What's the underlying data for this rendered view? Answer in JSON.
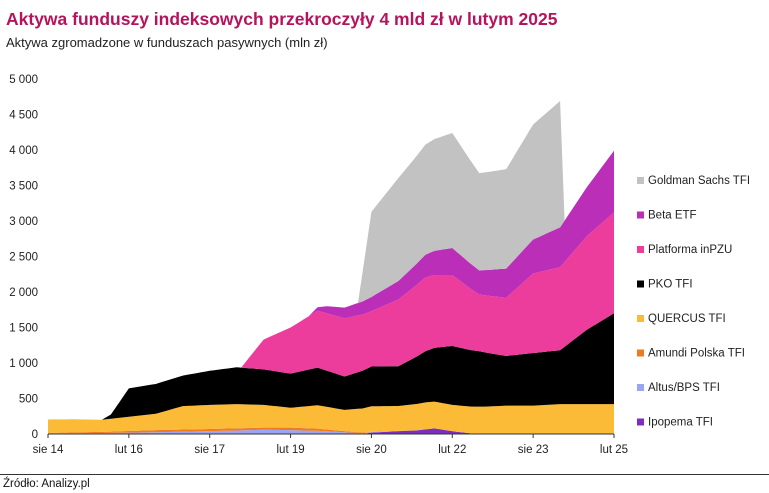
{
  "header": {
    "title": "Aktywa funduszy indeksowych przekroczyły 4 mld zł w lutym 2025",
    "subtitle": "Aktywa zgromadzone w funduszach pasywnych (mln zł)"
  },
  "footer": {
    "source": "Źródło: Analizy.pl"
  },
  "chart_data": {
    "type": "area",
    "stacked": true,
    "title": "Aktywa funduszy indeksowych przekroczyły 4 mld zł w lutym 2025",
    "subtitle": "Aktywa zgromadzone w funduszach pasywnych (mln zł)",
    "ylim": [
      0,
      5000
    ],
    "yticks": [
      0,
      500,
      1000,
      1500,
      2000,
      2500,
      3000,
      3500,
      4000,
      4500,
      5000
    ],
    "ytick_labels": [
      "0",
      "500",
      "1 000",
      "1 500",
      "2 000",
      "2 500",
      "3 000",
      "3 500",
      "4 000",
      "4 500",
      "5 000"
    ],
    "x_range": [
      "2014-08",
      "2025-02"
    ],
    "xtick_labels": [
      {
        "label": "sie 14",
        "date": "2014-08"
      },
      {
        "label": "lut 16",
        "date": "2016-02"
      },
      {
        "label": "sie 17",
        "date": "2017-08"
      },
      {
        "label": "lut 19",
        "date": "2019-02"
      },
      {
        "label": "sie 20",
        "date": "2020-08"
      },
      {
        "label": "lut 22",
        "date": "2022-02"
      },
      {
        "label": "sie 23",
        "date": "2023-08"
      },
      {
        "label": "lut 25",
        "date": "2025-02"
      }
    ],
    "grid": false,
    "legend_position": "right",
    "series": [
      {
        "name": "Ipopema TFI",
        "color": "#7b2fbe",
        "points": [
          [
            "2014-08",
            0
          ],
          [
            "2016-02",
            0
          ],
          [
            "2017-08",
            0
          ],
          [
            "2019-02",
            0
          ],
          [
            "2020-06",
            0
          ],
          [
            "2020-08",
            20
          ],
          [
            "2021-02",
            40
          ],
          [
            "2021-06",
            50
          ],
          [
            "2021-10",
            80
          ],
          [
            "2022-02",
            40
          ],
          [
            "2022-06",
            10
          ],
          [
            "2022-10",
            0
          ],
          [
            "2025-02",
            0
          ]
        ]
      },
      {
        "name": "Altus/BPS TFI",
        "color": "#9aa6f5",
        "points": [
          [
            "2014-08",
            10
          ],
          [
            "2015-08",
            15
          ],
          [
            "2016-08",
            25
          ],
          [
            "2017-08",
            40
          ],
          [
            "2018-08",
            60
          ],
          [
            "2019-02",
            55
          ],
          [
            "2019-08",
            45
          ],
          [
            "2020-08",
            5
          ],
          [
            "2021-08",
            0
          ],
          [
            "2025-02",
            0
          ]
        ]
      },
      {
        "name": "Amundi Polska TFI",
        "color": "#f07a22",
        "points": [
          [
            "2014-08",
            5
          ],
          [
            "2015-08",
            15
          ],
          [
            "2016-08",
            30
          ],
          [
            "2017-08",
            30
          ],
          [
            "2018-08",
            30
          ],
          [
            "2019-02",
            35
          ],
          [
            "2019-08",
            30
          ],
          [
            "2020-02",
            15
          ],
          [
            "2020-08",
            5
          ],
          [
            "2021-08",
            0
          ],
          [
            "2025-02",
            0
          ]
        ]
      },
      {
        "name": "QUERCUS TFI",
        "color": "#fbbb37",
        "points": [
          [
            "2014-08",
            190
          ],
          [
            "2015-02",
            185
          ],
          [
            "2015-08",
            170
          ],
          [
            "2016-02",
            200
          ],
          [
            "2016-08",
            230
          ],
          [
            "2017-02",
            330
          ],
          [
            "2017-08",
            340
          ],
          [
            "2018-02",
            340
          ],
          [
            "2018-08",
            320
          ],
          [
            "2019-02",
            280
          ],
          [
            "2019-08",
            330
          ],
          [
            "2020-02",
            300
          ],
          [
            "2020-08",
            360
          ],
          [
            "2021-02",
            350
          ],
          [
            "2021-08",
            380
          ],
          [
            "2022-02",
            370
          ],
          [
            "2022-08",
            380
          ],
          [
            "2023-02",
            400
          ],
          [
            "2023-08",
            400
          ],
          [
            "2024-02",
            420
          ],
          [
            "2024-08",
            420
          ],
          [
            "2025-02",
            420
          ]
        ]
      },
      {
        "name": "PKO TFI",
        "color": "#000000",
        "points": [
          [
            "2014-08",
            0
          ],
          [
            "2015-08",
            0
          ],
          [
            "2015-10",
            60
          ],
          [
            "2016-02",
            400
          ],
          [
            "2016-08",
            420
          ],
          [
            "2017-02",
            430
          ],
          [
            "2017-08",
            480
          ],
          [
            "2018-02",
            520
          ],
          [
            "2018-08",
            500
          ],
          [
            "2019-02",
            480
          ],
          [
            "2019-08",
            530
          ],
          [
            "2020-02",
            470
          ],
          [
            "2020-08",
            560
          ],
          [
            "2021-02",
            560
          ],
          [
            "2021-08",
            720
          ],
          [
            "2022-02",
            830
          ],
          [
            "2022-08",
            780
          ],
          [
            "2023-02",
            700
          ],
          [
            "2023-08",
            740
          ],
          [
            "2024-02",
            760
          ],
          [
            "2024-08",
            1050
          ],
          [
            "2025-02",
            1280
          ]
        ]
      },
      {
        "name": "Platforma inPZU",
        "color": "#ec3d9d",
        "points": [
          [
            "2014-08",
            0
          ],
          [
            "2018-03",
            0
          ],
          [
            "2018-08",
            420
          ],
          [
            "2019-02",
            650
          ],
          [
            "2019-08",
            800
          ],
          [
            "2020-02",
            820
          ],
          [
            "2020-08",
            780
          ],
          [
            "2021-02",
            940
          ],
          [
            "2021-08",
            1040
          ],
          [
            "2022-02",
            1000
          ],
          [
            "2022-08",
            800
          ],
          [
            "2023-02",
            820
          ],
          [
            "2023-08",
            1120
          ],
          [
            "2024-02",
            1170
          ],
          [
            "2024-08",
            1320
          ],
          [
            "2025-02",
            1420
          ]
        ]
      },
      {
        "name": "Beta ETF",
        "color": "#bb2fb8",
        "points": [
          [
            "2014-08",
            0
          ],
          [
            "2019-06",
            0
          ],
          [
            "2019-10",
            100
          ],
          [
            "2020-02",
            150
          ],
          [
            "2020-08",
            200
          ],
          [
            "2021-02",
            260
          ],
          [
            "2021-08",
            320
          ],
          [
            "2022-02",
            380
          ],
          [
            "2022-08",
            340
          ],
          [
            "2023-02",
            410
          ],
          [
            "2023-08",
            480
          ],
          [
            "2024-02",
            560
          ],
          [
            "2024-08",
            690
          ],
          [
            "2025-02",
            870
          ]
        ]
      },
      {
        "name": "Goldman Sachs TFI",
        "color": "#c2c2c2",
        "points": [
          [
            "2014-08",
            0
          ],
          [
            "2020-05",
            0
          ],
          [
            "2020-08",
            1200
          ],
          [
            "2021-02",
            1450
          ],
          [
            "2021-08",
            1550
          ],
          [
            "2022-02",
            1620
          ],
          [
            "2022-08",
            1370
          ],
          [
            "2023-02",
            1400
          ],
          [
            "2023-08",
            1620
          ],
          [
            "2024-02",
            1780
          ],
          [
            "2024-03",
            0
          ],
          [
            "2025-02",
            0
          ]
        ]
      }
    ]
  }
}
